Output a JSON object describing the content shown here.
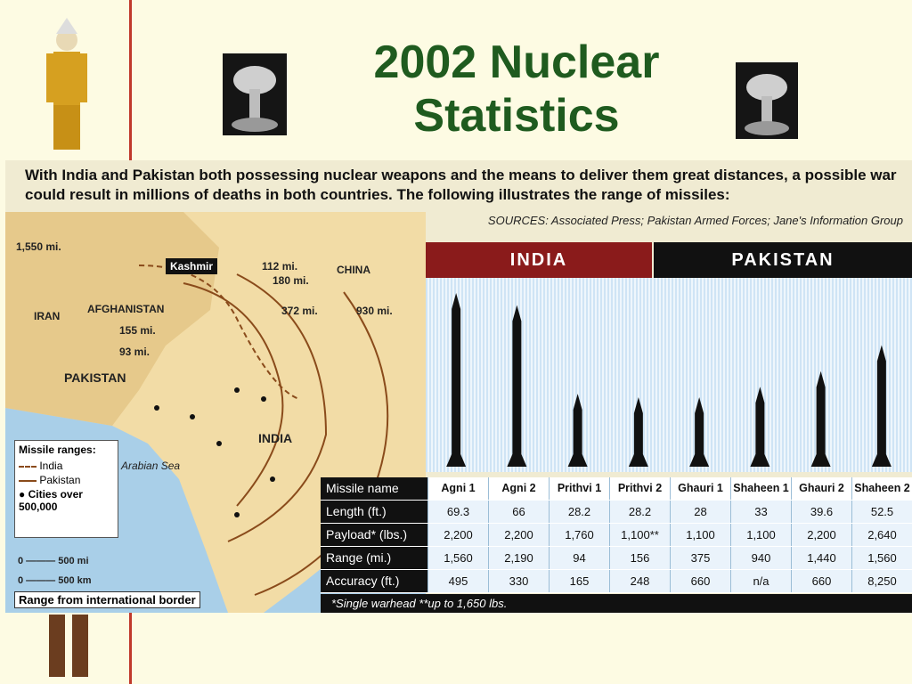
{
  "slide": {
    "title_line1": "2002 Nuclear",
    "title_line2": "Statistics"
  },
  "intro": "With India and Pakistan both possessing nuclear weapons and the means to deliver them great distances, a possible war could result in millions of deaths in both countries.  The following illustrates the range of missiles:",
  "sources": "SOURCES: Associated Press; Pakistan Armed Forces; Jane's Information Group",
  "map": {
    "labels": {
      "kashmir": "Kashmir",
      "china": "CHINA",
      "iran": "IRAN",
      "afghanistan": "AFGHANISTAN",
      "pakistan": "PAKISTAN",
      "india": "INDIA",
      "arabian_sea": "Arabian Sea"
    },
    "ranges": [
      "1,550 mi.",
      "112 mi.",
      "180 mi.",
      "372 mi.",
      "930 mi.",
      "155 mi.",
      "93 mi."
    ],
    "legend": {
      "title": "Missile ranges:",
      "india": "India",
      "pakistan": "Pakistan",
      "cities": "Cities over 500,000"
    },
    "scale_mi": "500 mi",
    "scale_km": "500 km",
    "scale_zero_1": "0",
    "scale_zero_2": "0",
    "range_note": "Range from international border"
  },
  "countries": {
    "india": "INDIA",
    "pakistan": "PAKISTAN"
  },
  "missile_rel_heights": [
    1.0,
    0.93,
    0.42,
    0.4,
    0.4,
    0.46,
    0.55,
    0.7
  ],
  "table": {
    "headers": [
      "Missile name",
      "Agni 1",
      "Agni 2",
      "Prithvi 1",
      "Prithvi 2",
      "Ghauri 1",
      "Shaheen 1",
      "Ghauri 2",
      "Shaheen 2"
    ],
    "rows": [
      [
        "Length (ft.)",
        "69.3",
        "66",
        "28.2",
        "28.2",
        "28",
        "33",
        "39.6",
        "52.5"
      ],
      [
        "Payload* (lbs.)",
        "2,200",
        "2,200",
        "1,760",
        "1,100**",
        "1,100",
        "1,100",
        "2,200",
        "2,640"
      ],
      [
        "Range (mi.)",
        "1,560",
        "2,190",
        "94",
        "156",
        "375",
        "940",
        "1,440",
        "1,560"
      ],
      [
        "Accuracy (ft.)",
        "495",
        "330",
        "165",
        "248",
        "660",
        "n/a",
        "660",
        "8,250"
      ]
    ]
  },
  "footnote": "*Single warhead   **up to 1,650 lbs.",
  "colors": {
    "title_green": "#1f5b1f",
    "india_red": "#8a1b1b",
    "pakistan_black": "#111111",
    "map_land": "#f2dca6",
    "sea": "#a9cfe8"
  }
}
